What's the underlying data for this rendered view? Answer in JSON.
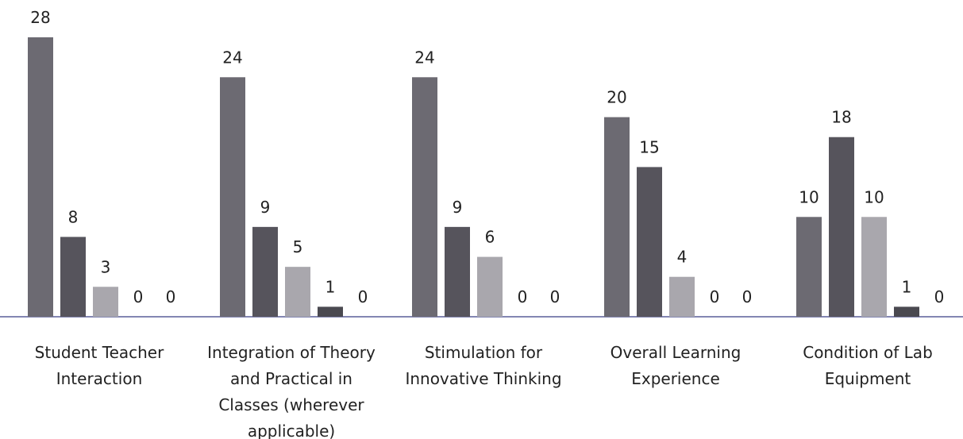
{
  "chart_data": {
    "type": "bar",
    "categories": [
      "Student Teacher Interaction",
      "Integration of Theory and Practical in Classes (wherever applicable)",
      "Stimulation for Innovative Thinking",
      "Overall Learning Experience",
      "Condition of Lab Equipment"
    ],
    "series": [
      {
        "color": "#6c6a72",
        "values": [
          28,
          24,
          24,
          20,
          10
        ]
      },
      {
        "color": "#56545c",
        "values": [
          8,
          9,
          9,
          15,
          18
        ]
      },
      {
        "color": "#a9a7ad",
        "values": [
          3,
          5,
          6,
          4,
          10
        ]
      },
      {
        "color": "#4a4950",
        "values": [
          0,
          1,
          0,
          0,
          1
        ]
      },
      {
        "color": "#8a8890",
        "values": [
          0,
          0,
          0,
          0,
          0
        ]
      }
    ],
    "ylim": [
      0,
      28
    ]
  }
}
